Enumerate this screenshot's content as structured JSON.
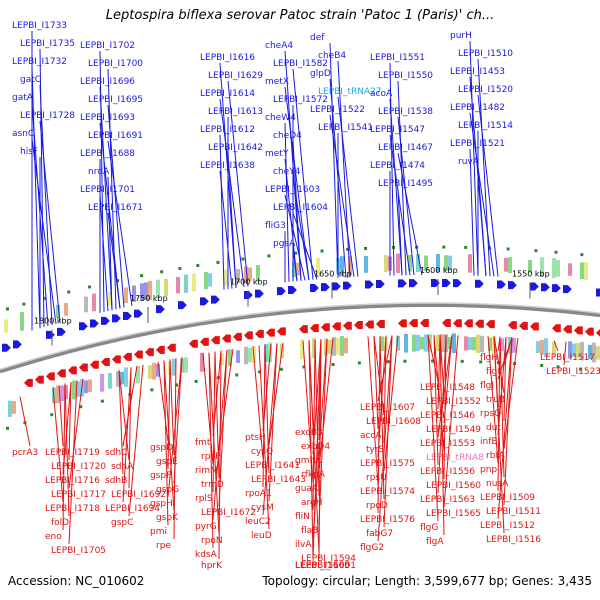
{
  "header": {
    "title": "Leptospira biflexa serovar Patoc strain 'Patoc 1 (Paris)' ch..."
  },
  "footer": {
    "accession": "Accession: NC_010602",
    "summary": "Topology: circular; Length: 3,599,677 bp; Genes: 3,435"
  },
  "colors": {
    "plus_strand": "#1a1adf",
    "minus_strand": "#e01414",
    "rna": "#1fa6e6",
    "rna_minus": "#e57ab8",
    "backbone": "#888888",
    "tick_dot": "#2a8a2a"
  },
  "scale_labels": [
    "1550 kbp",
    "1600 kbp",
    "1650 kbp",
    "1700 kbp",
    "1750 kbp",
    "1800 kbp"
  ],
  "top_labels": [
    "LEPBI_I1733",
    "LEPBI_I1735",
    "LEPBI_I1732",
    "gatC",
    "gatA",
    "LEPBI_I1728",
    "asnC",
    "hisF",
    "LEPBI_I1702",
    "LEPBI_I1700",
    "LEPBI_I1696",
    "LEPBI_I1695",
    "LEPBI_I1693",
    "LEPBI_I1691",
    "LEPBI_I1688",
    "nrdA",
    "LEPBI_I1701",
    "LEPBI_I1671",
    "LEPBI_I1616",
    "LEPBI_I1629",
    "LEPBI_I1614",
    "LEPBI_I1613",
    "LEPBI_I1612",
    "LEPBI_I1642",
    "LEPBI_I1638",
    "cheA4",
    "LEPBI_I1582",
    "metX",
    "LEPBI_I1572",
    "cheW4",
    "cheD4",
    "metY",
    "cheY4",
    "LEPBI_I1603",
    "LEPBI_I1604",
    "fliG3",
    "pgsA",
    "def",
    "cheB4",
    "glpD",
    "LEPBI_tRNA27",
    "LEPBI_I1522",
    "LEPBI_I1541",
    "LEPBI_I1551",
    "LEPBI_I1550",
    "acoA",
    "LEPBI_I1538",
    "LEPBI_I1547",
    "LEPBI_I1467",
    "LEPBI_I1474",
    "LEPBI_I1495",
    "purH",
    "LEPBI_I1510",
    "LEPBI_I1453",
    "LEPBI_I1520",
    "LEPBI_I1482",
    "LEPBI_I1514",
    "LEPBI_I1521",
    "ruvA"
  ],
  "bottom_labels": [
    "pcrA3",
    "LEPBI_I1719",
    "LEPBI_I1720",
    "LEPBI_I1716",
    "LEPBI_I1717",
    "LEPBI_I1718",
    "folD",
    "eno",
    "LEPBI_I1705",
    "sdhC",
    "sdhA",
    "sdhB",
    "LEPBI_I1692",
    "LEPBI_I1694",
    "gspC",
    "gspD",
    "gspE",
    "gspF",
    "gspG",
    "gspH",
    "gspK",
    "pmi",
    "rpe",
    "fmt",
    "rpsP",
    "rimM",
    "trmD",
    "rplS",
    "LEPBI_I1672",
    "pyrG",
    "rpoN",
    "kdsA",
    "hprK",
    "ptsH",
    "cysQ",
    "LEPBI_I1641",
    "LEPBI_I1643",
    "rpoA1",
    "cysM",
    "leuC2",
    "leuD",
    "exoB3",
    "exbD4",
    "gmhA",
    "rfkpA",
    "guaA",
    "argH",
    "fliN",
    "flaB",
    "ilvA",
    "LEPBI_I1594",
    "LEPBI_I1600",
    "LEPBI_I1601",
    "LEPBI_I1605",
    "LEPBI_I1607",
    "LEPBI_I1608",
    "accA",
    "tyrS",
    "LEPBI_I1575",
    "rpsU",
    "LEPBI_I1574",
    "rpoD",
    "LEPBI_I1576",
    "fabG7",
    "flgG2",
    "LEPBI_I1548",
    "LEPBI_I1552",
    "LEPBI_I1546",
    "LEPBI_I1549",
    "LEPBI_I1553",
    "LEPBI_tRNA8",
    "LEPBI_I1556",
    "LEPBI_I1560",
    "LEPBI_I1563",
    "LEPBI_I1565",
    "flgG",
    "flgA",
    "flgH",
    "flgI",
    "flgJ",
    "truB",
    "rpsO",
    "dut",
    "infB",
    "rbfA",
    "pnp",
    "nusA",
    "LEPBI_I1509",
    "LEPBI_I1511",
    "LEPBI_I1512",
    "LEPBI_I1516",
    "LEPBI_I1517",
    "LEPBI_I1523"
  ]
}
